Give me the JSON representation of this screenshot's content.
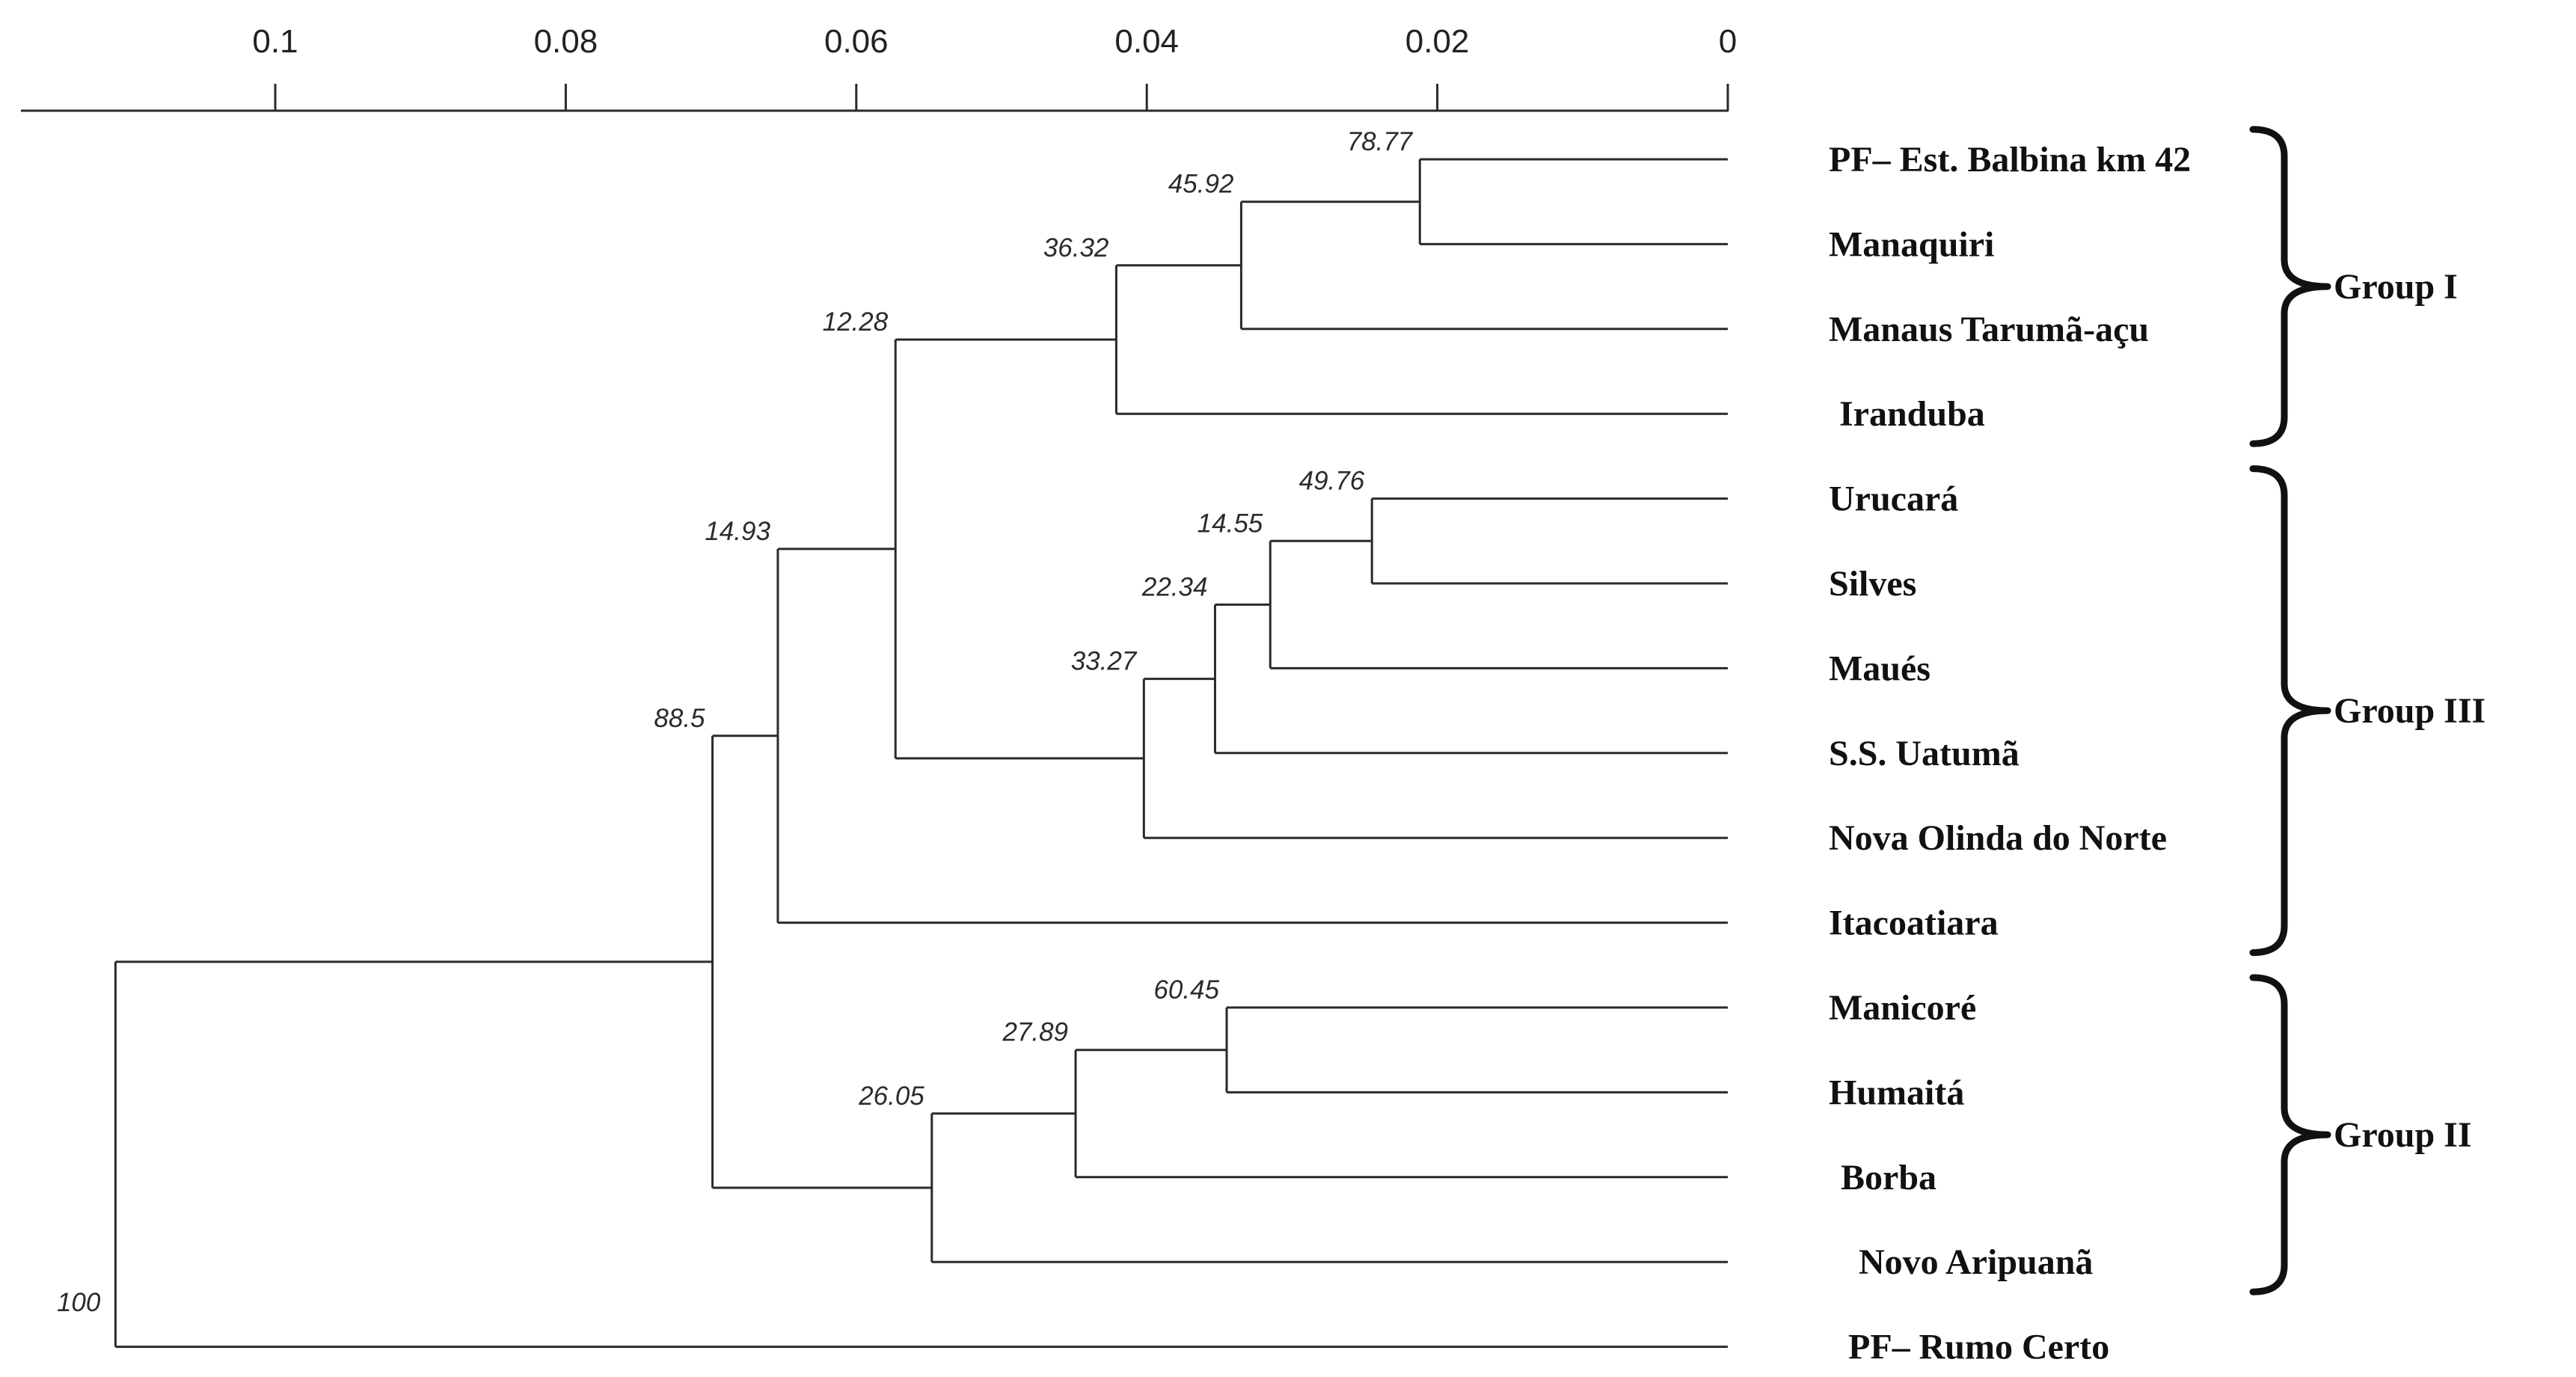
{
  "chart_data": {
    "type": "dendrogram",
    "axis": {
      "range": [
        0.1135,
        0
      ],
      "ticks": [
        {
          "value": 0.1,
          "label": "0.1"
        },
        {
          "value": 0.08,
          "label": "0.08"
        },
        {
          "value": 0.06,
          "label": "0.06"
        },
        {
          "value": 0.04,
          "label": "0.04"
        },
        {
          "value": 0.02,
          "label": "0.02"
        },
        {
          "value": 0,
          "label": "0"
        }
      ]
    },
    "leaves": [
      {
        "id": "L1",
        "label": "PF– Est. Balbina km 42"
      },
      {
        "id": "L2",
        "label": "Manaquiri"
      },
      {
        "id": "L3",
        "label": "Manaus Tarumã-açu"
      },
      {
        "id": "L4",
        "label": "Iranduba"
      },
      {
        "id": "L5",
        "label": "Urucará"
      },
      {
        "id": "L6",
        "label": "Silves"
      },
      {
        "id": "L7",
        "label": "Maués"
      },
      {
        "id": "L8",
        "label": "S.S. Uatumã"
      },
      {
        "id": "L9",
        "label": "Nova Olinda do Norte"
      },
      {
        "id": "L10",
        "label": "Itacoatiara"
      },
      {
        "id": "L11",
        "label": "Manicoré"
      },
      {
        "id": "L12",
        "label": "Humaitá"
      },
      {
        "id": "L13",
        "label": "Borba"
      },
      {
        "id": "L14",
        "label": "Novo Aripuanã"
      },
      {
        "id": "L15",
        "label": "PF– Rumo Certo"
      }
    ],
    "clusters": [
      {
        "id": "N1",
        "children": [
          "L1",
          "L2"
        ],
        "height": 0.0212,
        "support": "78.77"
      },
      {
        "id": "N2",
        "children": [
          "N1",
          "L3"
        ],
        "height": 0.0335,
        "support": "45.92"
      },
      {
        "id": "N3",
        "children": [
          "N2",
          "L4"
        ],
        "height": 0.0421,
        "support": "36.32"
      },
      {
        "id": "N4",
        "children": [
          "L5",
          "L6"
        ],
        "height": 0.0245,
        "support": "49.76"
      },
      {
        "id": "N5",
        "children": [
          "N4",
          "L7"
        ],
        "height": 0.0315,
        "support": "14.55"
      },
      {
        "id": "N6",
        "children": [
          "N5",
          "L8"
        ],
        "height": 0.0353,
        "support": "22.34"
      },
      {
        "id": "N7",
        "children": [
          "N6",
          "L9"
        ],
        "height": 0.0402,
        "support": "33.27"
      },
      {
        "id": "N8",
        "children": [
          "N3",
          "N7"
        ],
        "height": 0.0573,
        "support": "12.28"
      },
      {
        "id": "N9",
        "children": [
          "N8",
          "L10"
        ],
        "height": 0.0654,
        "support": "14.93"
      },
      {
        "id": "N10",
        "children": [
          "L11",
          "L12"
        ],
        "height": 0.0345,
        "support": "60.45"
      },
      {
        "id": "N11",
        "children": [
          "N10",
          "L13"
        ],
        "height": 0.0449,
        "support": "27.89"
      },
      {
        "id": "N12",
        "children": [
          "N11",
          "L14"
        ],
        "height": 0.0548,
        "support": "26.05"
      },
      {
        "id": "N13",
        "children": [
          "N9",
          "N12"
        ],
        "height": 0.0699,
        "support": "88.5"
      },
      {
        "id": "N14",
        "children": [
          "N13",
          "L15"
        ],
        "height": 0.111,
        "support": "100"
      }
    ],
    "groups": [
      {
        "label": "Group I",
        "members": [
          "L1",
          "L2",
          "L3",
          "L4"
        ]
      },
      {
        "label": "Group III",
        "members": [
          "L5",
          "L6",
          "L7",
          "L8",
          "L9",
          "L10"
        ]
      },
      {
        "label": "Group II",
        "members": [
          "L11",
          "L12",
          "L13",
          "L14"
        ]
      }
    ]
  }
}
